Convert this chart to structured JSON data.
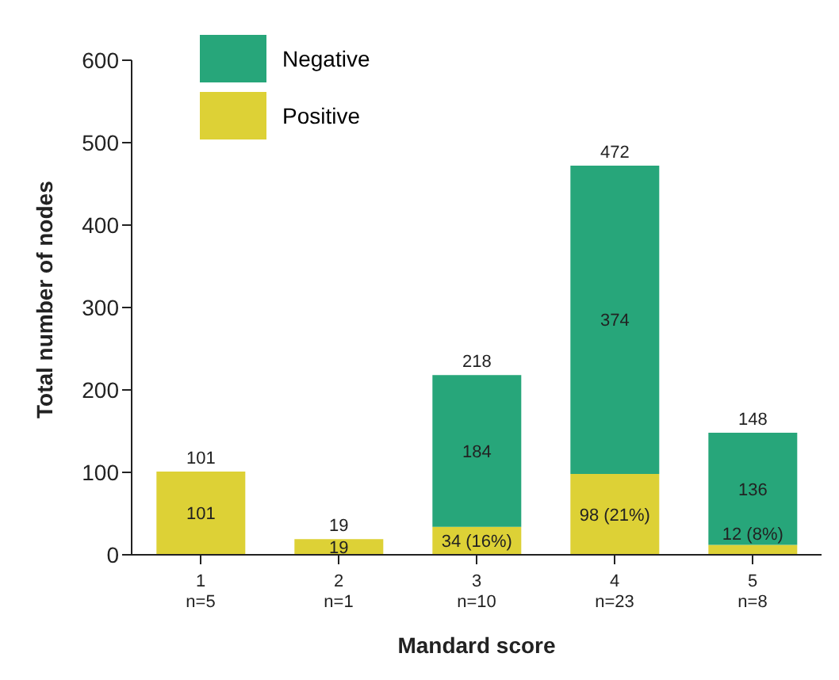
{
  "chart_data": {
    "type": "bar",
    "stacked": true,
    "xlabel": "Mandard score",
    "ylabel": "Total number of nodes",
    "categories": [
      "1\nn=5",
      "2\nn=1",
      "3\nn=10",
      "4\nn=23",
      "5\nn=8"
    ],
    "series": [
      {
        "name": "Positive",
        "color": "#ddd136",
        "values": [
          101,
          19,
          34,
          98,
          12
        ],
        "value_labels": [
          "101",
          "19",
          "34 (16%)",
          "98 (21%)",
          "12 (8%)"
        ]
      },
      {
        "name": "Negative",
        "color": "#27a67a",
        "values": [
          null,
          null,
          184,
          374,
          136
        ],
        "value_labels": [
          null,
          null,
          "184",
          "374",
          "136"
        ]
      }
    ],
    "totals": [
      "101",
      "19",
      "218",
      "472",
      "148"
    ],
    "ylim": [
      0,
      600
    ],
    "yticks": [
      0,
      100,
      200,
      300,
      400,
      500,
      600
    ],
    "grid": false,
    "legend": "top left"
  }
}
